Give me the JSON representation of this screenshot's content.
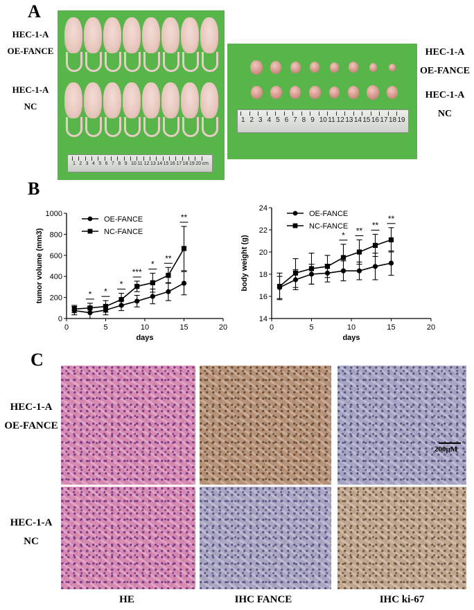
{
  "panels": {
    "a": "A",
    "b": "B",
    "c": "C"
  },
  "panelA": {
    "mice_oe_label": [
      "HEC-1-A",
      "OE-FANCE"
    ],
    "mice_nc_label": [
      "HEC-1-A",
      "NC"
    ],
    "tumor_oe_label": [
      "HEC-1-A",
      "OE-FANCE"
    ],
    "tumor_nc_label": [
      "HEC-1-A",
      "NC"
    ],
    "ruler_mice_ticks": [
      "1",
      "2",
      "3",
      "4",
      "5",
      "6",
      "7",
      "8",
      "9",
      "10",
      "11",
      "12",
      "13",
      "14",
      "15",
      "16",
      "17",
      "18",
      "19",
      "20",
      "cm"
    ],
    "ruler_tumor_ticks": [
      "1",
      "2",
      "3",
      "4",
      "5",
      "6",
      "7",
      "8",
      "9",
      "10",
      "11",
      "12",
      "13",
      "14",
      "15",
      "16",
      "17",
      "18",
      "19"
    ]
  },
  "chart_data": [
    {
      "type": "line",
      "xlabel": "days",
      "ylabel": "tumor volume (mm3)",
      "xlim": [
        0,
        20
      ],
      "ylim": [
        0,
        1000
      ],
      "xticks": [
        0,
        5,
        10,
        15,
        20
      ],
      "yticks": [
        0,
        200,
        400,
        600,
        800,
        1000
      ],
      "legend_position": "top-left",
      "x": [
        1,
        3,
        5,
        7,
        9,
        11,
        13,
        15
      ],
      "series": [
        {
          "name": "OE-FANCE",
          "marker": "circle",
          "values": [
            75,
            55,
            80,
            125,
            165,
            210,
            255,
            335
          ],
          "errors": [
            40,
            55,
            45,
            50,
            55,
            70,
            85,
            110
          ]
        },
        {
          "name": "NC-FANCE",
          "marker": "square",
          "values": [
            90,
            100,
            115,
            180,
            305,
            340,
            410,
            665
          ],
          "errors": [
            35,
            45,
            55,
            60,
            50,
            90,
            75,
            210
          ]
        }
      ],
      "significance": [
        {
          "x": 3,
          "label": "*"
        },
        {
          "x": 5,
          "label": "*"
        },
        {
          "x": 7,
          "label": "*"
        },
        {
          "x": 9,
          "label": "***"
        },
        {
          "x": 11,
          "label": "*"
        },
        {
          "x": 13,
          "label": "**"
        },
        {
          "x": 15,
          "label": "**"
        }
      ]
    },
    {
      "type": "line",
      "xlabel": "days",
      "ylabel": "body weight (g)",
      "xlim": [
        0,
        20
      ],
      "ylim": [
        14,
        24
      ],
      "xticks": [
        0,
        5,
        10,
        15,
        20
      ],
      "yticks": [
        14,
        16,
        18,
        20,
        22,
        24
      ],
      "legend_position": "top-left",
      "x": [
        1,
        3,
        5,
        7,
        9,
        11,
        13,
        15
      ],
      "series": [
        {
          "name": "OE-FANCE",
          "marker": "circle",
          "values": [
            16.8,
            17.5,
            18.0,
            18.1,
            18.3,
            18.3,
            18.7,
            19.0
          ],
          "errors": [
            1.0,
            0.9,
            0.9,
            0.8,
            0.9,
            0.8,
            1.2,
            1.1
          ]
        },
        {
          "name": "NC-FANCE",
          "marker": "square",
          "values": [
            16.9,
            18.1,
            18.5,
            18.7,
            19.5,
            20.0,
            20.6,
            21.1
          ],
          "errors": [
            1.2,
            1.3,
            1.4,
            1.0,
            1.2,
            1.1,
            1.0,
            1.1
          ]
        }
      ],
      "significance": [
        {
          "x": 9,
          "label": "*"
        },
        {
          "x": 11,
          "label": "**"
        },
        {
          "x": 13,
          "label": "**"
        },
        {
          "x": 15,
          "label": "**"
        }
      ]
    }
  ],
  "panelC": {
    "row_oe_label": [
      "HEC-1-A",
      "OE-FANCE"
    ],
    "row_nc_label": [
      "HEC-1-A",
      "NC"
    ],
    "scale_bar": "200μM",
    "columns": [
      "HE",
      "IHC FANCE",
      "IHC ki-67"
    ],
    "stain_colors": {
      "he": "#d98ab2",
      "fance_high": "#b89378",
      "fance_low": "#aaa6c4",
      "ki67_low": "#a7a5c6",
      "ki67_high": "#c1a78e"
    }
  },
  "colors": {
    "green_background": "#58b54a",
    "ruler": "#d9dcd6"
  }
}
